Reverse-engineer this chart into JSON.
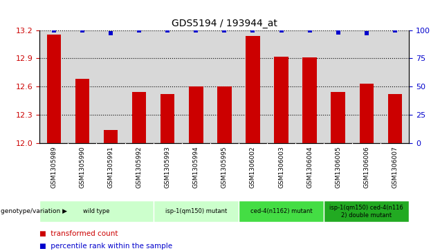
{
  "title": "GDS5194 / 193944_at",
  "categories": [
    "GSM1305989",
    "GSM1305990",
    "GSM1305991",
    "GSM1305992",
    "GSM1305993",
    "GSM1305994",
    "GSM1305995",
    "GSM1306002",
    "GSM1306003",
    "GSM1306004",
    "GSM1306005",
    "GSM1306006",
    "GSM1306007"
  ],
  "bar_values": [
    13.15,
    12.68,
    12.14,
    12.54,
    12.52,
    12.6,
    12.6,
    13.14,
    12.92,
    12.91,
    12.54,
    12.63,
    12.52
  ],
  "percentile_values": [
    100,
    100,
    97,
    100,
    100,
    100,
    100,
    100,
    100,
    100,
    98,
    97,
    100
  ],
  "bar_color": "#CC0000",
  "dot_color": "#0000CC",
  "ylim_left": [
    12.0,
    13.2
  ],
  "ylim_right": [
    0,
    100
  ],
  "yticks_left": [
    12.0,
    12.3,
    12.6,
    12.9,
    13.2
  ],
  "yticks_right": [
    0,
    25,
    50,
    75,
    100
  ],
  "plot_bg": "#d8d8d8",
  "genotype_groups": [
    {
      "label": "wild type",
      "start": 0,
      "end": 4,
      "color": "#ccffcc"
    },
    {
      "label": "isp-1(qm150) mutant",
      "start": 4,
      "end": 7,
      "color": "#ccffcc"
    },
    {
      "label": "ced-4(n1162) mutant",
      "start": 7,
      "end": 10,
      "color": "#44dd44"
    },
    {
      "label": "isp-1(qm150) ced-4(n116\n2) double mutant",
      "start": 10,
      "end": 13,
      "color": "#22aa22"
    }
  ],
  "genotype_label": "genotype/variation",
  "bar_width": 0.5,
  "dot_size": 18,
  "legend_red": "transformed count",
  "legend_blue": "percentile rank within the sample"
}
